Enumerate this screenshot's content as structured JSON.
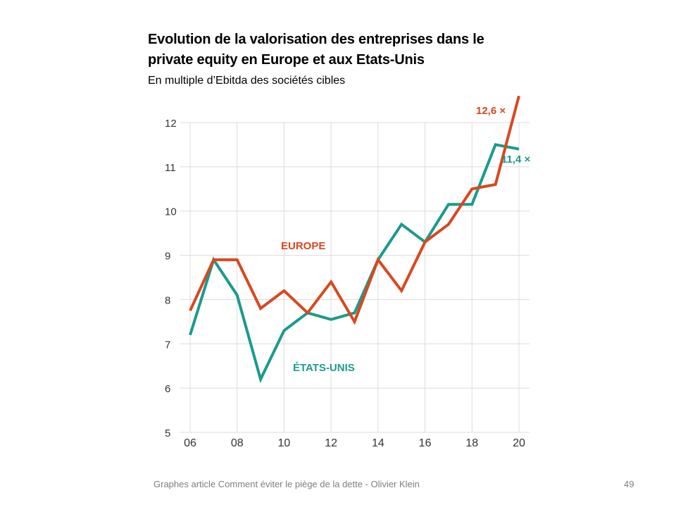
{
  "slide": {
    "title_line1": "Evolution de la valorisation des entreprises dans le",
    "title_line2": "private equity en Europe et aux Etats-Unis",
    "subtitle": "En multiple d’Ebitda des sociétés cibles",
    "footer": "Graphes article Comment  éviter le piège de la dette - Olivier Klein",
    "page_number": "49"
  },
  "chart_data": {
    "type": "line",
    "title": "",
    "xlabel": "",
    "ylabel": "",
    "x": [
      2006,
      2007,
      2008,
      2009,
      2010,
      2011,
      2012,
      2013,
      2014,
      2015,
      2016,
      2017,
      2018,
      2019,
      2020
    ],
    "x_tick_values": [
      2006,
      2008,
      2010,
      2012,
      2014,
      2016,
      2018,
      2020
    ],
    "x_tick_labels": [
      "06",
      "08",
      "10",
      "12",
      "14",
      "16",
      "18",
      "20"
    ],
    "y_ticks": [
      5,
      6,
      7,
      8,
      9,
      10,
      11,
      12
    ],
    "ylim": [
      5,
      12
    ],
    "grid": true,
    "series": [
      {
        "name": "EUROPE",
        "color": "#d9481f",
        "values": [
          7.75,
          8.9,
          8.9,
          7.8,
          8.2,
          7.7,
          8.4,
          7.5,
          8.9,
          8.2,
          9.3,
          9.7,
          10.5,
          10.6,
          12.6
        ],
        "end_label": "12,6 ×"
      },
      {
        "name": "ÉTATS-UNIS",
        "color": "#1b9a8e",
        "values": [
          7.2,
          8.9,
          8.1,
          6.2,
          7.3,
          7.7,
          7.55,
          7.7,
          8.9,
          9.7,
          9.3,
          10.15,
          10.15,
          11.5,
          11.4
        ],
        "end_label": "11,4 ×"
      }
    ]
  }
}
